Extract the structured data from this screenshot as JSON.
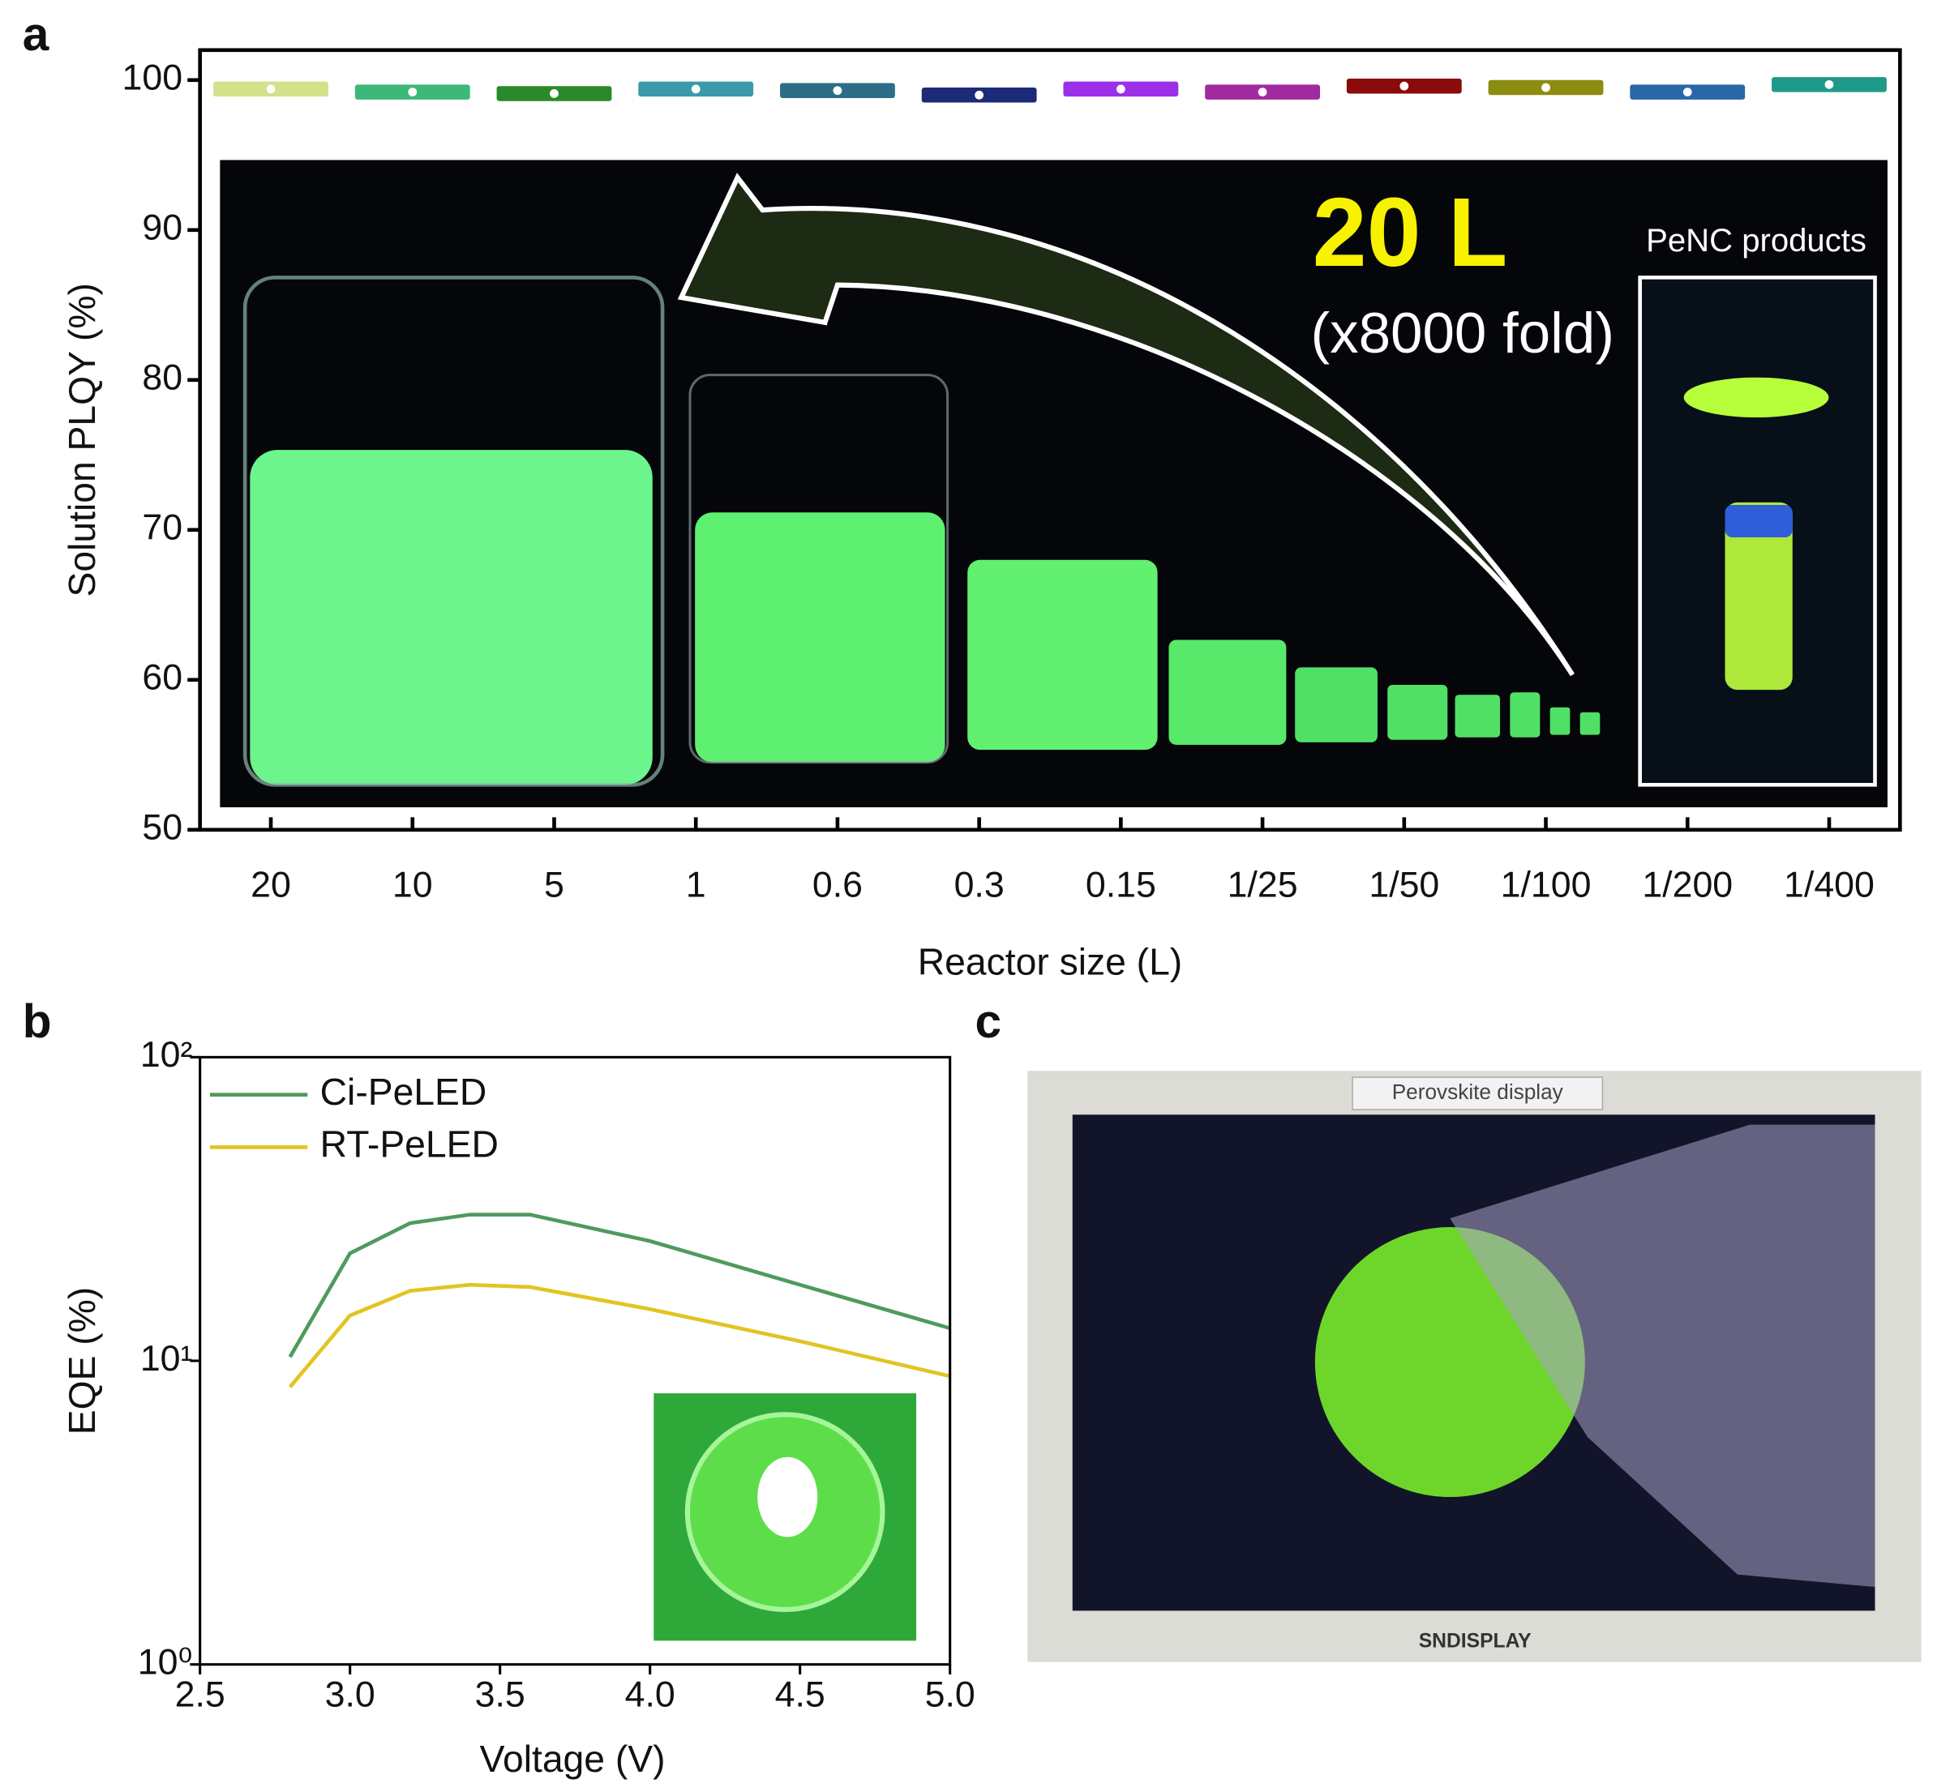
{
  "panel_labels": [
    "a",
    "b",
    "c"
  ],
  "photo_a": {
    "headline": "20 L",
    "subline": "(x8000 fold)",
    "inset": "PeNC products"
  },
  "photo_c": {
    "display_label": "Perovskite display",
    "brand": "SNDISPLAY"
  },
  "chart_data": [
    {
      "type": "box",
      "x_label": "Reactor size (L)",
      "y_label": "Solution PLQY (%)",
      "categories": [
        "20",
        "10",
        "5",
        "1",
        "0.6",
        "0.3",
        "0.15",
        "1/25",
        "1/50",
        "1/100",
        "1/200",
        "1/400"
      ],
      "values": [
        99.4,
        99.2,
        99.1,
        99.4,
        99.3,
        99.0,
        99.4,
        99.2,
        99.6,
        99.5,
        99.2,
        99.7
      ],
      "colors": [
        "#d4e08a",
        "#3cb878",
        "#2a8a2a",
        "#3a9aaa",
        "#2d6e86",
        "#1c2a78",
        "#9b30e8",
        "#a02aa0",
        "#8b0a0a",
        "#8c8c10",
        "#2a66a8",
        "#1f9a8a"
      ],
      "ylim": [
        50,
        102
      ],
      "yticks": [
        50,
        60,
        70,
        80,
        90,
        100
      ]
    },
    {
      "type": "line",
      "x_label": "Voltage (V)",
      "y_label": "EQE (%)",
      "log_y": true,
      "legend": "upper left",
      "x": [
        2.8,
        3.0,
        3.2,
        3.4,
        3.6,
        4.0,
        4.5,
        5.0
      ],
      "series": [
        {
          "name": "Ci-PeLED",
          "color": "#4f9a5c",
          "values": [
            10.3,
            22.6,
            28.4,
            30.3,
            30.3,
            24.8,
            17.8,
            12.8
          ]
        },
        {
          "name": "RT-PeLED",
          "color": "#e2c422",
          "values": [
            8.2,
            14.1,
            17.0,
            17.8,
            17.5,
            14.8,
            11.6,
            8.9
          ]
        }
      ],
      "xlim": [
        2.5,
        5.0
      ],
      "xticks": [
        2.5,
        {
          "value": 3,
          "label": "3.0"
        },
        3.5,
        {
          "value": 4,
          "label": "4.0"
        },
        4.5,
        {
          "value": 5,
          "label": "5.0"
        }
      ],
      "ylim": [
        1,
        100
      ],
      "yticks": [
        {
          "value": 1,
          "label": "10⁰"
        },
        {
          "value": 10,
          "label": "10¹"
        },
        {
          "value": 100,
          "label": "10²"
        }
      ]
    }
  ]
}
